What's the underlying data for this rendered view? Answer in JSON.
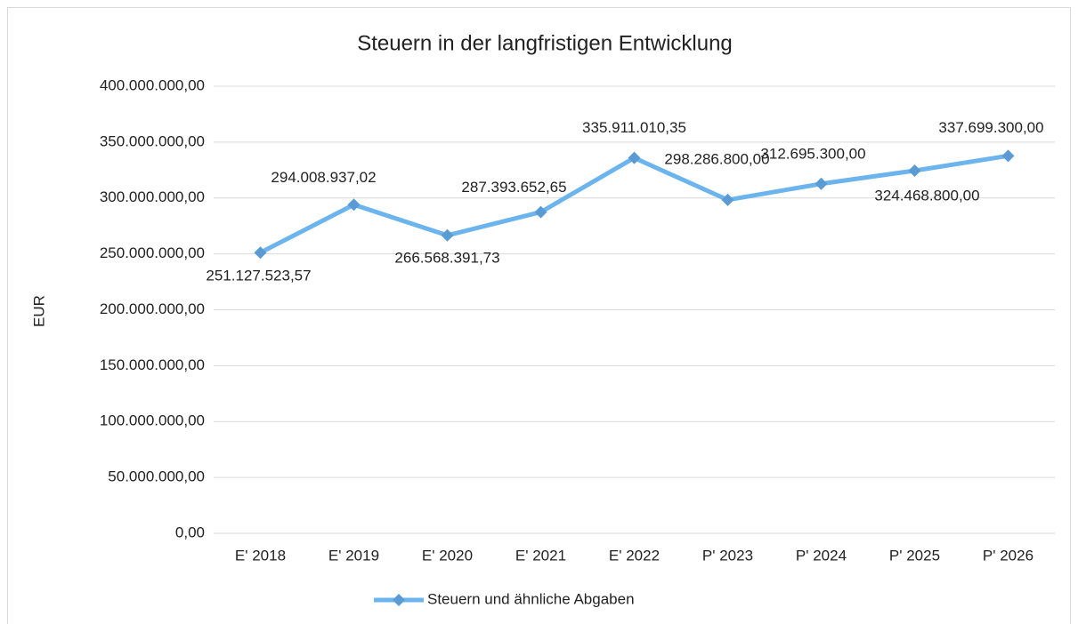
{
  "chart_data": {
    "type": "line",
    "title": "Steuern in der langfristigen Entwicklung",
    "y_label": "EUR",
    "categories": [
      "E' 2018",
      "E' 2019",
      "E' 2020",
      "E' 2021",
      "E' 2022",
      "P' 2023",
      "P' 2024",
      "P' 2025",
      "P' 2026"
    ],
    "series": [
      {
        "name": "Steuern und ähnliche Abgaben",
        "color": "#6cb4ee",
        "marker_color": "#5b9bd5",
        "values": [
          251127523.57,
          294008937.02,
          266568391.73,
          287393652.65,
          335911010.35,
          298286800.0,
          312695300.0,
          324468800.0,
          337699300.0
        ],
        "value_labels": [
          "251.127.523,57",
          "294.008.937,02",
          "266.568.391,73",
          "287.393.652,65",
          "335.911.010,35",
          "298.286.800,00",
          "312.695.300,00",
          "324.468.800,00",
          "337.699.300,00"
        ]
      }
    ],
    "ylim": [
      0,
      400000000
    ],
    "yticks": [
      {
        "value": 0,
        "label": "0,00"
      },
      {
        "value": 50000000,
        "label": "50.000.000,00"
      },
      {
        "value": 100000000,
        "label": "100.000.000,00"
      },
      {
        "value": 150000000,
        "label": "150.000.000,00"
      },
      {
        "value": 200000000,
        "label": "200.000.000,00"
      },
      {
        "value": 250000000,
        "label": "250.000.000,00"
      },
      {
        "value": 300000000,
        "label": "300.000.000,00"
      },
      {
        "value": 350000000,
        "label": "350.000.000,00"
      },
      {
        "value": 400000000,
        "label": "400.000.000,00"
      }
    ],
    "grid": true,
    "legend": "bottom"
  }
}
